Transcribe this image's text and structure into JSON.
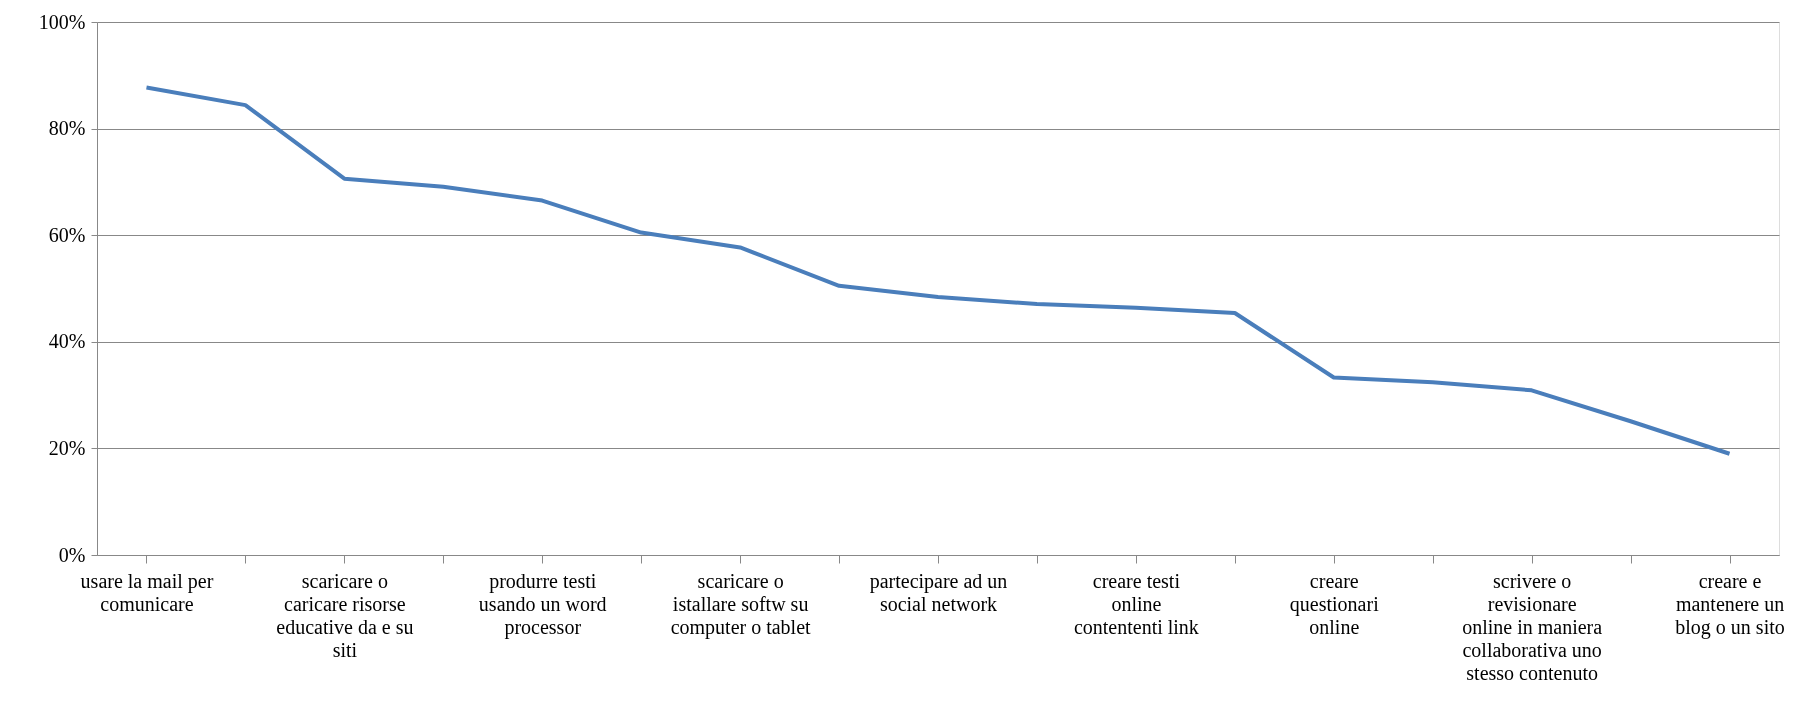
{
  "chart_data": {
    "type": "line",
    "categories": [
      "usare la mail per\ncomunicare",
      null,
      "scaricare o\ncaricare risorse\neducative da e su\nsiti",
      null,
      "produrre testi\nusando un word\nprocessor",
      null,
      "scaricare o\nistallare softw su\ncomputer o tablet",
      null,
      "partecipare ad un\nsocial network",
      null,
      "creare testi\nonline\ncontententi link",
      null,
      "creare\nquestionari\nonline",
      null,
      "scrivere o\nrevisionare\nonline in maniera\ncollaborativa uno\nstesso contenuto",
      null,
      "creare e\nmantenere un\nblog o un sito"
    ],
    "series": [
      {
        "color": "#4a7ebb",
        "values": [
          87.7,
          84.4,
          70.6,
          69.1,
          66.5,
          60.5,
          57.7,
          50.5,
          48.4,
          47.1,
          46.4,
          45.4,
          33.3,
          32.4,
          30.9,
          25.1,
          19.0
        ]
      }
    ],
    "ylim": [
      0,
      100
    ],
    "yticks": [
      {
        "value": 0,
        "label": "0%"
      },
      {
        "value": 20,
        "label": "20%"
      },
      {
        "value": 40,
        "label": "40%"
      },
      {
        "value": 60,
        "label": "60%"
      },
      {
        "value": 80,
        "label": "80%"
      },
      {
        "value": 100,
        "label": "100%"
      }
    ],
    "grid": "y",
    "marker": "none",
    "line_style": "solid"
  }
}
